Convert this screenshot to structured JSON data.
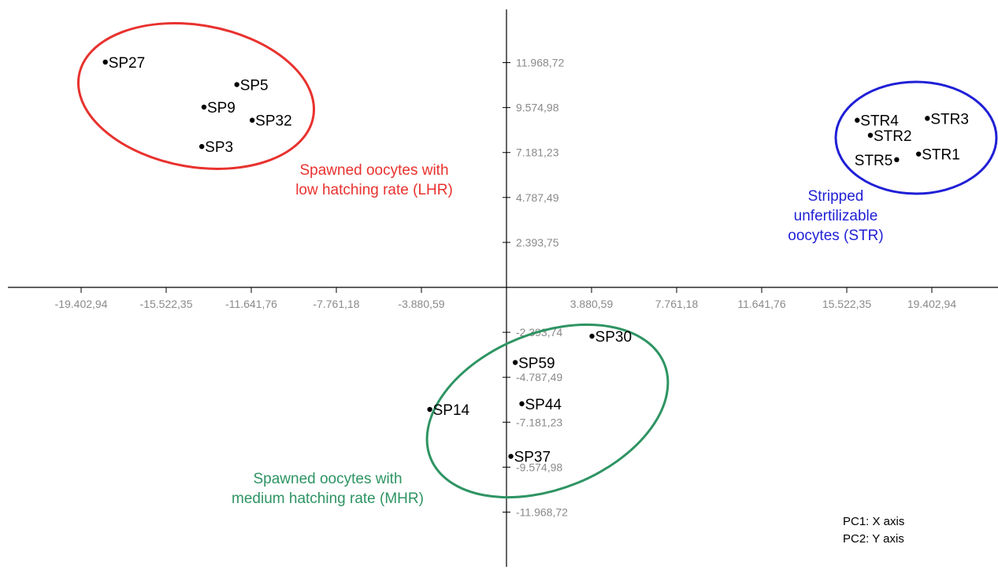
{
  "chart_data": {
    "type": "scatter",
    "x_axis_label": "PC1: X axis",
    "y_axis_label": "PC2: Y axis",
    "xlim": [
      -22.4,
      22.4
    ],
    "ylim": [
      -12.95,
      13.7
    ],
    "x_ticks": [
      {
        "value": -19.40294,
        "label": "-19.402,94"
      },
      {
        "value": -15.52235,
        "label": "-15.522,35"
      },
      {
        "value": -11.64176,
        "label": "-11.641,76"
      },
      {
        "value": -7.76118,
        "label": "-7.761,18"
      },
      {
        "value": -3.88059,
        "label": "-3.880,59"
      },
      {
        "value": 3.88059,
        "label": "3.880,59"
      },
      {
        "value": 7.76118,
        "label": "7.761,18"
      },
      {
        "value": 11.64176,
        "label": "11.641,76"
      },
      {
        "value": 15.52235,
        "label": "15.522,35"
      },
      {
        "value": 19.40294,
        "label": "19.402,94"
      }
    ],
    "y_ticks": [
      {
        "value": 11.96872,
        "label": "11.968,72"
      },
      {
        "value": 9.57498,
        "label": "9.574,98"
      },
      {
        "value": 7.18123,
        "label": "7.181,23"
      },
      {
        "value": 4.78749,
        "label": "4.787,49"
      },
      {
        "value": 2.39375,
        "label": "2.393,75"
      },
      {
        "value": -2.39374,
        "label": "-2.393,74"
      },
      {
        "value": -4.78749,
        "label": "-4.787,49"
      },
      {
        "value": -7.18123,
        "label": "-7.181,23"
      },
      {
        "value": -9.57498,
        "label": "-9.574,98"
      },
      {
        "value": -11.96872,
        "label": "-11.968,72"
      }
    ],
    "groups": [
      {
        "name": "Spawned oocytes with low hatching rate (LHR)",
        "label_lines": [
          "Spawned oocytes with",
          "low hatching rate (LHR)"
        ],
        "color": "#e8322e",
        "points": [
          {
            "label": "SP27",
            "x": -18.3,
            "y": 12.0
          },
          {
            "label": "SP5",
            "x": -12.3,
            "y": 10.8
          },
          {
            "label": "SP9",
            "x": -13.8,
            "y": 9.6
          },
          {
            "label": "SP32",
            "x": -11.6,
            "y": 8.9
          },
          {
            "label": "SP3",
            "x": -13.9,
            "y": 7.5
          }
        ]
      },
      {
        "name": "Spawned oocytes with medium hatching rate (MHR)",
        "label_lines": [
          "Spawned oocytes with",
          "medium hatching rate (MHR)"
        ],
        "color": "#2e9463",
        "points": [
          {
            "label": "SP30",
            "x": 3.9,
            "y": -2.6
          },
          {
            "label": "SP59",
            "x": 0.4,
            "y": -4.0
          },
          {
            "label": "SP14",
            "x": -3.5,
            "y": -6.5
          },
          {
            "label": "SP44",
            "x": 0.7,
            "y": -6.2
          },
          {
            "label": "SP37",
            "x": 0.2,
            "y": -9.0
          }
        ]
      },
      {
        "name": "Stripped unfertilizable oocytes (STR)",
        "label_lines": [
          "Stripped",
          "unfertilizable",
          "oocytes (STR)"
        ],
        "color": "#1f1fd6",
        "points": [
          {
            "label": "STR4",
            "x": 16.0,
            "y": 8.9
          },
          {
            "label": "STR3",
            "x": 19.2,
            "y": 9.0
          },
          {
            "label": "STR2",
            "x": 16.6,
            "y": 8.1
          },
          {
            "label": "STR1",
            "x": 18.8,
            "y": 7.1
          },
          {
            "label": "STR5",
            "x": 17.8,
            "y": 6.8
          }
        ]
      }
    ]
  }
}
